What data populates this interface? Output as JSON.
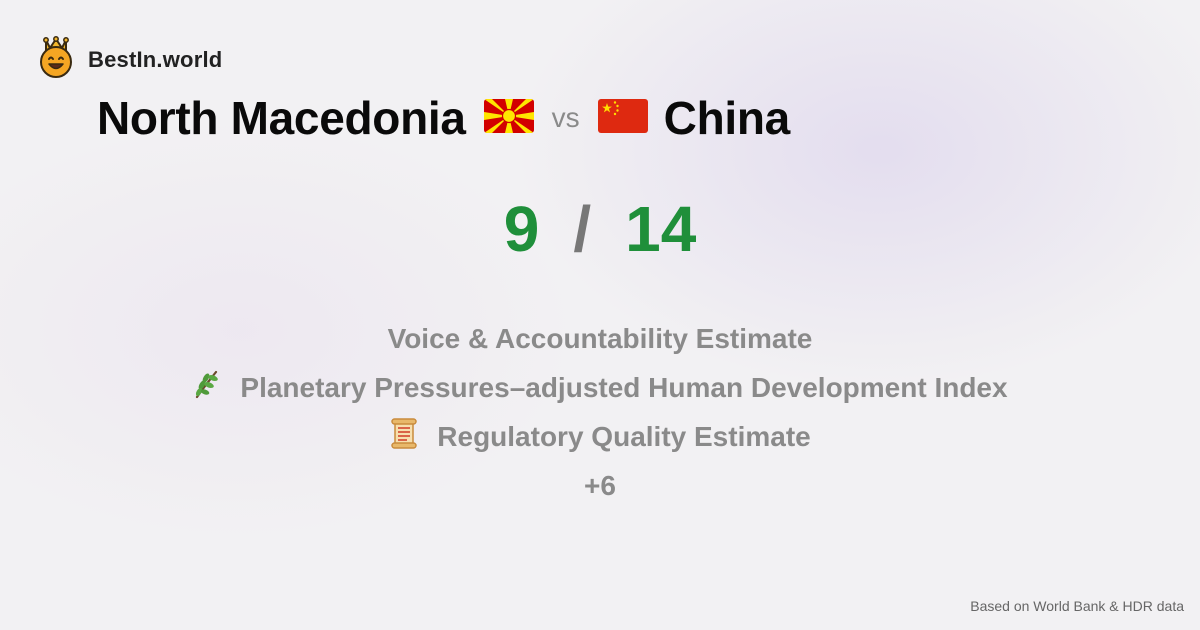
{
  "brand": {
    "name": "BestIn.world",
    "logo_icon": "crowned-smiley-icon"
  },
  "comparison": {
    "left_country": "North Macedonia",
    "left_flag_icon": "north-macedonia-flag-icon",
    "vs_label": "vs",
    "right_country": "China",
    "right_flag_icon": "china-flag-icon"
  },
  "score": {
    "left": "9",
    "separator": "/",
    "right": "14",
    "color": "#1f8f3a"
  },
  "metrics": [
    {
      "label": "Voice & Accountability Estimate",
      "icon": ""
    },
    {
      "label": "Planetary Pressures–adjusted Human Development Index",
      "icon": "herb-icon"
    },
    {
      "label": "Regulatory Quality Estimate",
      "icon": "scroll-icon"
    }
  ],
  "more_label": "+6",
  "footer": "Based on World Bank & HDR data"
}
